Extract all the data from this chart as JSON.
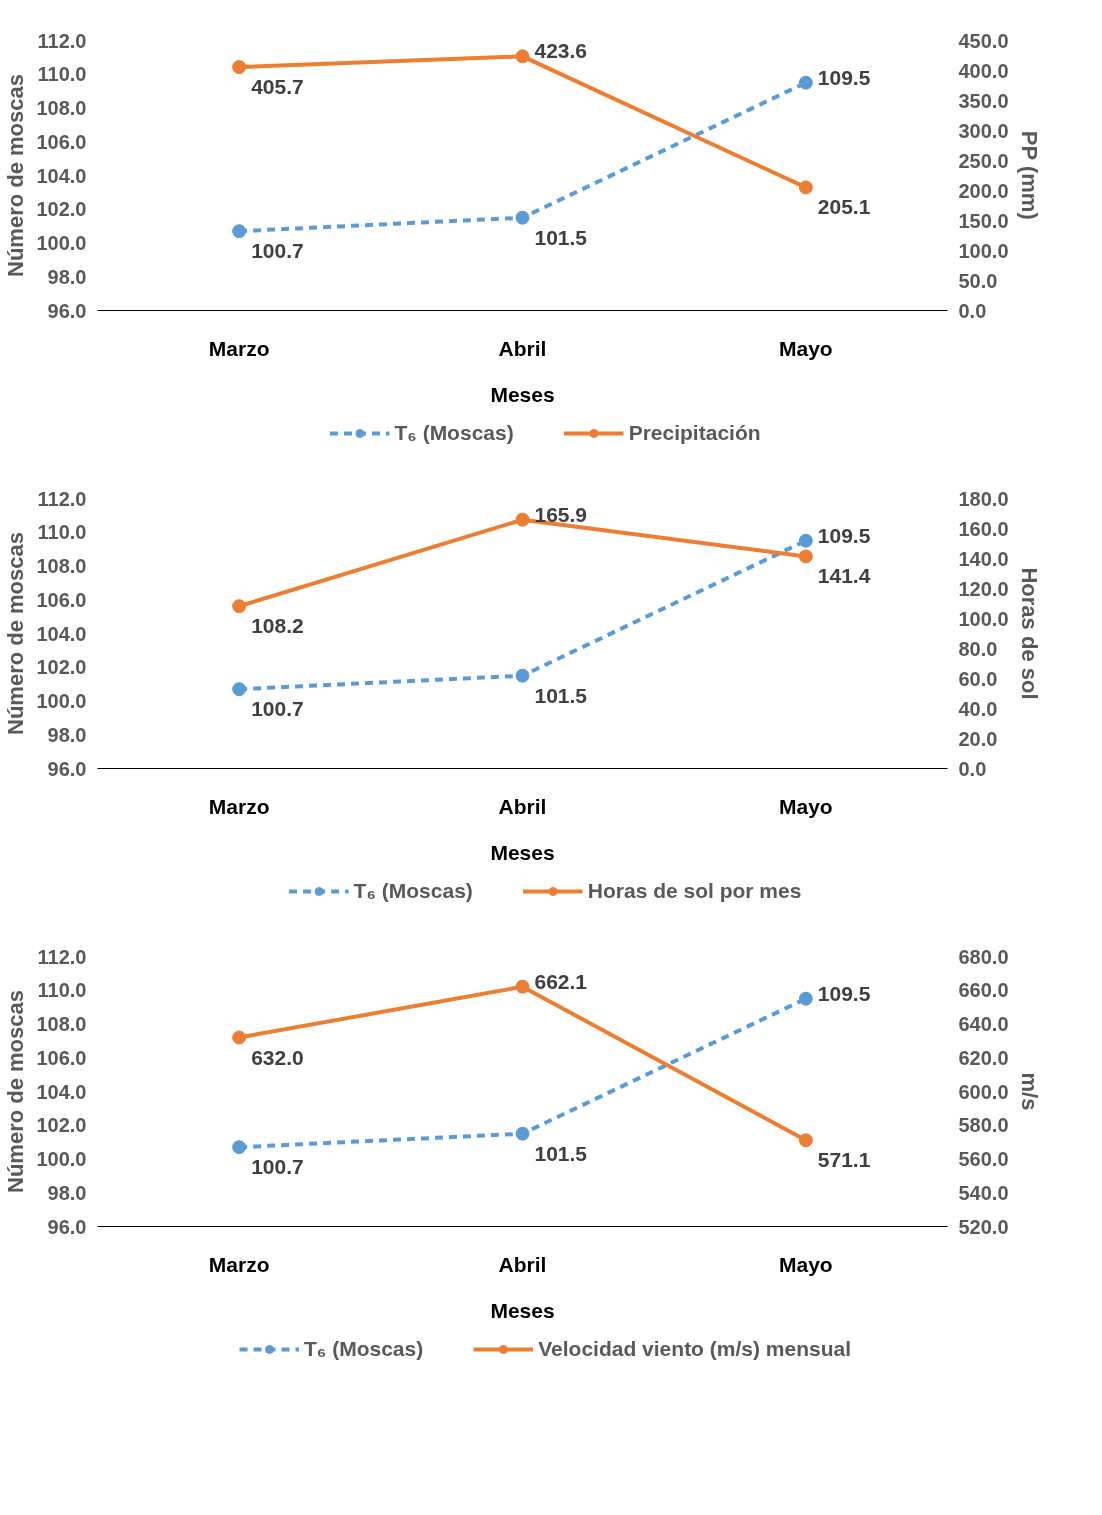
{
  "chart_data": [
    {
      "type": "line",
      "categories": [
        "Marzo",
        "Abril",
        "Mayo"
      ],
      "xlabel": "Meses",
      "ylabel": "Número de moscas",
      "y2label": "PP (mm)",
      "ylim": [
        96,
        112
      ],
      "yticks": [
        {
          "value": 96,
          "label": "96.0"
        },
        {
          "value": 98,
          "label": "98.0"
        },
        {
          "value": 100,
          "label": "100.0"
        },
        {
          "value": 102,
          "label": "102.0"
        },
        {
          "value": 104,
          "label": "104.0"
        },
        {
          "value": 106,
          "label": "106.0"
        },
        {
          "value": 108,
          "label": "108.0"
        },
        {
          "value": 110,
          "label": "110.0"
        },
        {
          "value": 112,
          "label": "112.0"
        }
      ],
      "y2lim": [
        0,
        450
      ],
      "y2ticks": [
        {
          "value": 0,
          "label": "0.0"
        },
        {
          "value": 50,
          "label": "50.0"
        },
        {
          "value": 100,
          "label": "100.0"
        },
        {
          "value": 150,
          "label": "150.0"
        },
        {
          "value": 200,
          "label": "200.0"
        },
        {
          "value": 250,
          "label": "250.0"
        },
        {
          "value": 300,
          "label": "300.0"
        },
        {
          "value": 350,
          "label": "350.0"
        },
        {
          "value": 400,
          "label": "400.0"
        },
        {
          "value": 450,
          "label": "450.0"
        }
      ],
      "legend": "bottom",
      "grid": false,
      "marker": "circle",
      "series": [
        {
          "name": "T₆ (Moscas)",
          "color": "#5b9bd5",
          "line_style": "dashed",
          "values": [
            100.7,
            101.5,
            109.5
          ],
          "value_labels": [
            "100.7",
            "101.5",
            "109.5"
          ]
        },
        {
          "name": "Precipitación",
          "color": "#ed7d31",
          "line_style": "solid",
          "axis": "y2",
          "values": [
            405.7,
            423.6,
            205.1
          ],
          "value_labels": [
            "405.7",
            "423.6",
            "205.1"
          ]
        }
      ]
    },
    {
      "type": "line",
      "categories": [
        "Marzo",
        "Abril",
        "Mayo"
      ],
      "xlabel": "Meses",
      "ylabel": "Número de moscas",
      "y2label": "Horas de sol",
      "ylim": [
        96,
        112
      ],
      "yticks": [
        {
          "value": 96,
          "label": "96.0"
        },
        {
          "value": 98,
          "label": "98.0"
        },
        {
          "value": 100,
          "label": "100.0"
        },
        {
          "value": 102,
          "label": "102.0"
        },
        {
          "value": 104,
          "label": "104.0"
        },
        {
          "value": 106,
          "label": "106.0"
        },
        {
          "value": 108,
          "label": "108.0"
        },
        {
          "value": 110,
          "label": "110.0"
        },
        {
          "value": 112,
          "label": "112.0"
        }
      ],
      "y2lim": [
        0,
        180
      ],
      "y2ticks": [
        {
          "value": 0,
          "label": "0.0"
        },
        {
          "value": 20,
          "label": "20.0"
        },
        {
          "value": 40,
          "label": "40.0"
        },
        {
          "value": 60,
          "label": "60.0"
        },
        {
          "value": 80,
          "label": "80.0"
        },
        {
          "value": 100,
          "label": "100.0"
        },
        {
          "value": 120,
          "label": "120.0"
        },
        {
          "value": 140,
          "label": "140.0"
        },
        {
          "value": 160,
          "label": "160.0"
        },
        {
          "value": 180,
          "label": "180.0"
        }
      ],
      "legend": "bottom",
      "grid": false,
      "marker": "circle",
      "series": [
        {
          "name": "T₆ (Moscas)",
          "color": "#5b9bd5",
          "line_style": "dashed",
          "values": [
            100.7,
            101.5,
            109.5
          ],
          "value_labels": [
            "100.7",
            "101.5",
            "109.5"
          ]
        },
        {
          "name": "Horas de sol por mes",
          "color": "#ed7d31",
          "line_style": "solid",
          "axis": "y2",
          "values": [
            108.2,
            165.9,
            141.4
          ],
          "value_labels": [
            "108.2",
            "165.9",
            "141.4"
          ]
        }
      ]
    },
    {
      "type": "line",
      "categories": [
        "Marzo",
        "Abril",
        "Mayo"
      ],
      "xlabel": "Meses",
      "ylabel": "Número de moscas",
      "y2label": "m/s",
      "ylim": [
        96,
        112
      ],
      "yticks": [
        {
          "value": 96,
          "label": "96.0"
        },
        {
          "value": 98,
          "label": "98.0"
        },
        {
          "value": 100,
          "label": "100.0"
        },
        {
          "value": 102,
          "label": "102.0"
        },
        {
          "value": 104,
          "label": "104.0"
        },
        {
          "value": 106,
          "label": "106.0"
        },
        {
          "value": 108,
          "label": "108.0"
        },
        {
          "value": 110,
          "label": "110.0"
        },
        {
          "value": 112,
          "label": "112.0"
        }
      ],
      "y2lim": [
        520,
        680
      ],
      "y2ticks": [
        {
          "value": 520,
          "label": "520.0"
        },
        {
          "value": 540,
          "label": "540.0"
        },
        {
          "value": 560,
          "label": "560.0"
        },
        {
          "value": 580,
          "label": "580.0"
        },
        {
          "value": 600,
          "label": "600.0"
        },
        {
          "value": 620,
          "label": "620.0"
        },
        {
          "value": 640,
          "label": "640.0"
        },
        {
          "value": 660,
          "label": "660.0"
        },
        {
          "value": 680,
          "label": "680.0"
        }
      ],
      "legend": "bottom",
      "grid": false,
      "marker": "circle",
      "series": [
        {
          "name": "T₆ (Moscas)",
          "color": "#5b9bd5",
          "line_style": "dashed",
          "values": [
            100.7,
            101.5,
            109.5
          ],
          "value_labels": [
            "100.7",
            "101.5",
            "109.5"
          ]
        },
        {
          "name": "Velocidad viento (m/s) mensual",
          "color": "#ed7d31",
          "line_style": "solid",
          "axis": "y2",
          "values": [
            632.0,
            662.1,
            571.1
          ],
          "value_labels": [
            "632.0",
            "662.1",
            "571.1"
          ]
        }
      ]
    }
  ]
}
